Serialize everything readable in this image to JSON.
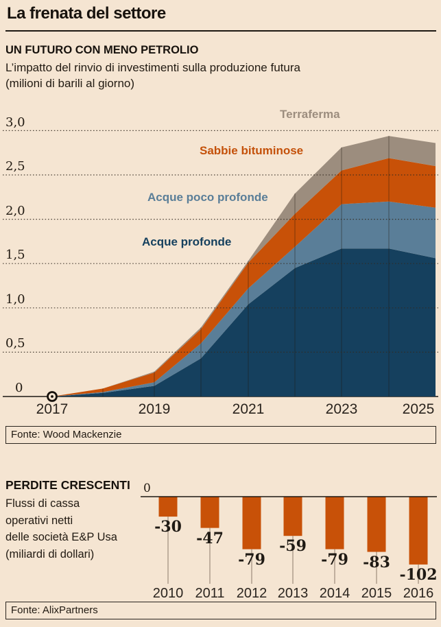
{
  "header": {
    "title": "La frenata del settore"
  },
  "chart1": {
    "heading": "UN FUTURO CON MENO PETROLIO",
    "subtitle": "L’impatto del rinvio di investimenti sulla produzione futura\n(milioni di barili al giorno)",
    "source": "Fonte: Wood Mackenzie"
  },
  "chart2": {
    "heading": "PERDITE CRESCENTI",
    "subtitle": "Flussi di cassa\noperativi netti\ndelle società E&P Usa\n(miliardi di dollari)",
    "source": "Fonte: AlixPartners"
  },
  "chart_data": [
    {
      "type": "area",
      "stacked": true,
      "title": "UN FUTURO CON MENO PETROLIO",
      "subtitle": "L’impatto del rinvio di investimenti sulla produzione futura (milioni di barili al giorno)",
      "x": [
        2017,
        2018,
        2019,
        2020,
        2021,
        2022,
        2023,
        2024,
        2025
      ],
      "x_tick_labels": [
        "2017",
        "2019",
        "2021",
        "2023",
        "2025"
      ],
      "y_tick_labels": [
        "0",
        "0,5",
        "1,0",
        "1,5",
        "2,0",
        "2,5",
        "3,0"
      ],
      "ylim": [
        0,
        3.0
      ],
      "grid": "horizontal dotted lines + vertical year lines inside areas",
      "legend_position": "inline colored labels above areas",
      "series": [
        {
          "name": "Acque profonde",
          "color": "#15405e",
          "values": [
            0,
            0.04,
            0.12,
            0.43,
            1.04,
            1.45,
            1.67,
            1.67,
            1.56
          ]
        },
        {
          "name": "Acque poco profonde",
          "color": "#5a7e98",
          "values": [
            0,
            0.01,
            0.04,
            0.17,
            0.18,
            0.24,
            0.5,
            0.53,
            0.57
          ]
        },
        {
          "name": "Sabbie bituminose",
          "color": "#c85108",
          "values": [
            0,
            0.04,
            0.11,
            0.16,
            0.29,
            0.37,
            0.38,
            0.49,
            0.47
          ]
        },
        {
          "name": "Terraferma",
          "color": "#9c8d7e",
          "values": [
            0,
            0.0,
            0.01,
            0.02,
            0.02,
            0.23,
            0.26,
            0.25,
            0.26
          ]
        }
      ],
      "start_marker_year": 2017
    },
    {
      "type": "bar",
      "title": "PERDITE CRESCENTI",
      "subtitle": "Flussi di cassa operativi netti delle società E&P Usa (miliardi di dollari)",
      "categories": [
        "2010",
        "2011",
        "2012",
        "2013",
        "2014",
        "2015",
        "2016"
      ],
      "values": [
        -30,
        -47,
        -79,
        -59,
        -79,
        -83,
        -102
      ],
      "value_labels": [
        "-30",
        "-47",
        "-79",
        "-59",
        "-79",
        "-83",
        "-102"
      ],
      "zero_label": "0",
      "bar_color": "#c85108",
      "ylim": [
        -110,
        0
      ]
    }
  ],
  "colors": {
    "background": "#f5e5d2",
    "ink": "#1d1812",
    "deep_water": "#15405e",
    "shallow_water": "#5a7e98",
    "tar_sands": "#c85108",
    "onshore": "#9c8d7e"
  }
}
